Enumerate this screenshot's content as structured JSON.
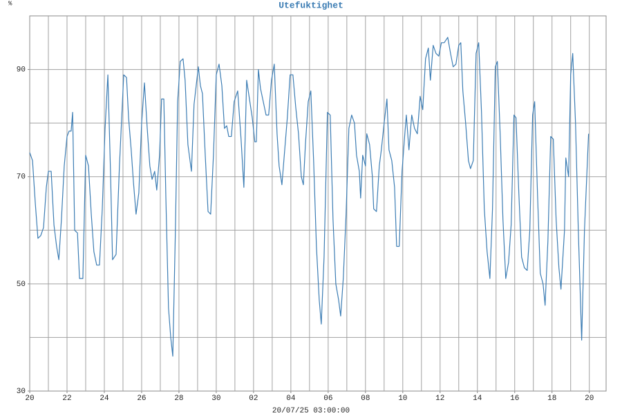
{
  "chart_data": {
    "type": "line",
    "title": "Utefuktighet",
    "y_unit": "%",
    "xlabel": "20/07/25 03:00:00",
    "color": "#3b7cb3",
    "xlim": [
      0,
      30.9
    ],
    "ylim": [
      30,
      100
    ],
    "yticks": [
      30,
      50,
      70,
      90
    ],
    "ygrid": [
      40,
      50,
      60,
      70,
      80,
      90
    ],
    "xgrid": [
      1,
      2,
      3,
      4,
      5,
      6,
      7,
      8,
      9,
      10,
      11,
      12,
      13,
      14,
      15,
      16,
      17,
      18,
      19,
      20,
      21,
      22,
      23,
      24,
      25,
      26,
      27,
      28,
      29,
      30
    ],
    "xticks": [
      {
        "value": 0,
        "label": "20"
      },
      {
        "value": 2,
        "label": "22"
      },
      {
        "value": 4,
        "label": "24"
      },
      {
        "value": 6,
        "label": "26"
      },
      {
        "value": 8,
        "label": "28"
      },
      {
        "value": 10,
        "label": "30"
      },
      {
        "value": 12,
        "label": "02"
      },
      {
        "value": 14,
        "label": "04"
      },
      {
        "value": 16,
        "label": "06"
      },
      {
        "value": 18,
        "label": "08"
      },
      {
        "value": 20,
        "label": "10"
      },
      {
        "value": 22,
        "label": "12"
      },
      {
        "value": 24,
        "label": "14"
      },
      {
        "value": 26,
        "label": "16"
      },
      {
        "value": 28,
        "label": "18"
      },
      {
        "value": 30,
        "label": "20"
      }
    ],
    "x": [
      0,
      0.15,
      0.3,
      0.44,
      0.59,
      0.74,
      0.89,
      1.0,
      1.15,
      1.3,
      1.44,
      1.56,
      1.7,
      1.85,
      2.0,
      2.11,
      2.22,
      2.3,
      2.41,
      2.56,
      2.67,
      2.85,
      3.0,
      3.15,
      3.3,
      3.44,
      3.59,
      3.74,
      3.89,
      4.04,
      4.19,
      4.33,
      4.44,
      4.63,
      4.81,
      5.04,
      5.19,
      5.3,
      5.44,
      5.56,
      5.7,
      5.85,
      6.0,
      6.15,
      6.3,
      6.44,
      6.56,
      6.7,
      6.81,
      6.96,
      7.07,
      7.19,
      7.3,
      7.44,
      7.56,
      7.67,
      7.81,
      7.93,
      8.07,
      8.22,
      8.33,
      8.48,
      8.67,
      8.81,
      9.04,
      9.15,
      9.26,
      9.41,
      9.56,
      9.7,
      9.85,
      10.0,
      10.15,
      10.3,
      10.44,
      10.56,
      10.67,
      10.81,
      10.96,
      11.15,
      11.33,
      11.48,
      11.63,
      11.78,
      11.93,
      12.07,
      12.15,
      12.26,
      12.37,
      12.52,
      12.67,
      12.81,
      12.96,
      13.11,
      13.26,
      13.37,
      13.52,
      13.67,
      13.81,
      13.96,
      14.11,
      14.26,
      14.41,
      14.56,
      14.67,
      14.78,
      14.93,
      15.07,
      15.22,
      15.37,
      15.52,
      15.63,
      15.78,
      15.96,
      16.11,
      16.26,
      16.41,
      16.56,
      16.67,
      16.81,
      16.96,
      17.11,
      17.26,
      17.41,
      17.52,
      17.67,
      17.74,
      17.85,
      18.0,
      18.07,
      18.22,
      18.37,
      18.44,
      18.59,
      18.74,
      18.85,
      19.0,
      19.15,
      19.26,
      19.41,
      19.56,
      19.67,
      19.81,
      19.96,
      20.11,
      20.19,
      20.33,
      20.48,
      20.63,
      20.78,
      20.93,
      21.07,
      21.22,
      21.37,
      21.48,
      21.63,
      21.78,
      21.93,
      22.07,
      22.22,
      22.41,
      22.56,
      22.7,
      22.85,
      23.0,
      23.11,
      23.22,
      23.37,
      23.52,
      23.63,
      23.78,
      23.93,
      24.07,
      24.22,
      24.37,
      24.52,
      24.67,
      24.81,
      24.96,
      25.07,
      25.22,
      25.37,
      25.52,
      25.67,
      25.81,
      25.96,
      26.07,
      26.22,
      26.37,
      26.52,
      26.67,
      26.81,
      26.96,
      27.07,
      27.22,
      27.37,
      27.52,
      27.63,
      27.78,
      27.93,
      28.07,
      28.22,
      28.37,
      28.48,
      28.67,
      28.74,
      28.89,
      29.0,
      29.11,
      29.26,
      29.41,
      29.59,
      29.74,
      29.96
    ],
    "values": [
      74.5,
      73,
      65,
      58.5,
      59,
      60.5,
      68,
      71,
      71,
      61,
      57,
      54.5,
      62,
      72,
      77.5,
      78.5,
      78.5,
      82,
      60,
      59.5,
      51,
      51,
      74,
      72,
      63,
      56,
      53.5,
      53.5,
      64,
      79,
      89,
      71,
      54.5,
      55.5,
      72,
      89,
      88.5,
      81,
      75,
      69,
      63,
      67,
      80,
      87.5,
      79,
      72,
      69.5,
      71,
      67.5,
      74,
      84.5,
      84.5,
      66,
      45.5,
      40,
      36.5,
      60,
      84,
      91.5,
      92,
      88,
      76,
      71,
      83.5,
      90.5,
      87,
      85.5,
      74,
      63.5,
      63,
      74,
      89,
      91,
      87,
      79,
      79.5,
      77.5,
      77.5,
      84,
      86,
      77,
      68,
      88,
      84.5,
      81,
      76.5,
      76.5,
      90,
      86.5,
      84,
      81.5,
      81.5,
      88,
      91,
      78,
      72,
      68.5,
      75,
      81,
      89,
      89,
      83,
      78,
      70,
      68.5,
      76,
      84,
      86,
      73,
      57,
      47,
      42.5,
      55,
      82,
      81.5,
      62,
      50,
      47,
      44,
      51,
      63,
      79,
      81.5,
      80,
      74,
      71,
      66,
      74,
      72,
      78,
      76,
      70,
      64,
      63.5,
      72,
      75,
      80,
      84.5,
      75,
      73,
      68,
      57,
      57,
      71,
      78,
      81.5,
      75,
      81.5,
      79,
      78,
      85,
      82.5,
      92,
      94,
      88,
      94.5,
      93,
      92.5,
      95,
      95,
      96,
      93,
      90.5,
      91,
      94.5,
      95,
      86,
      80,
      73,
      71.5,
      73,
      93,
      95,
      82,
      64,
      56,
      51,
      64,
      90.5,
      91.5,
      78,
      62,
      51,
      54,
      61,
      81.5,
      81,
      67,
      55,
      53,
      52.5,
      60,
      81.5,
      84,
      67,
      52,
      50,
      46,
      58,
      77.5,
      77,
      62,
      53,
      49,
      60,
      73.5,
      70,
      89,
      93,
      80,
      60,
      39.5,
      60,
      78
    ]
  }
}
